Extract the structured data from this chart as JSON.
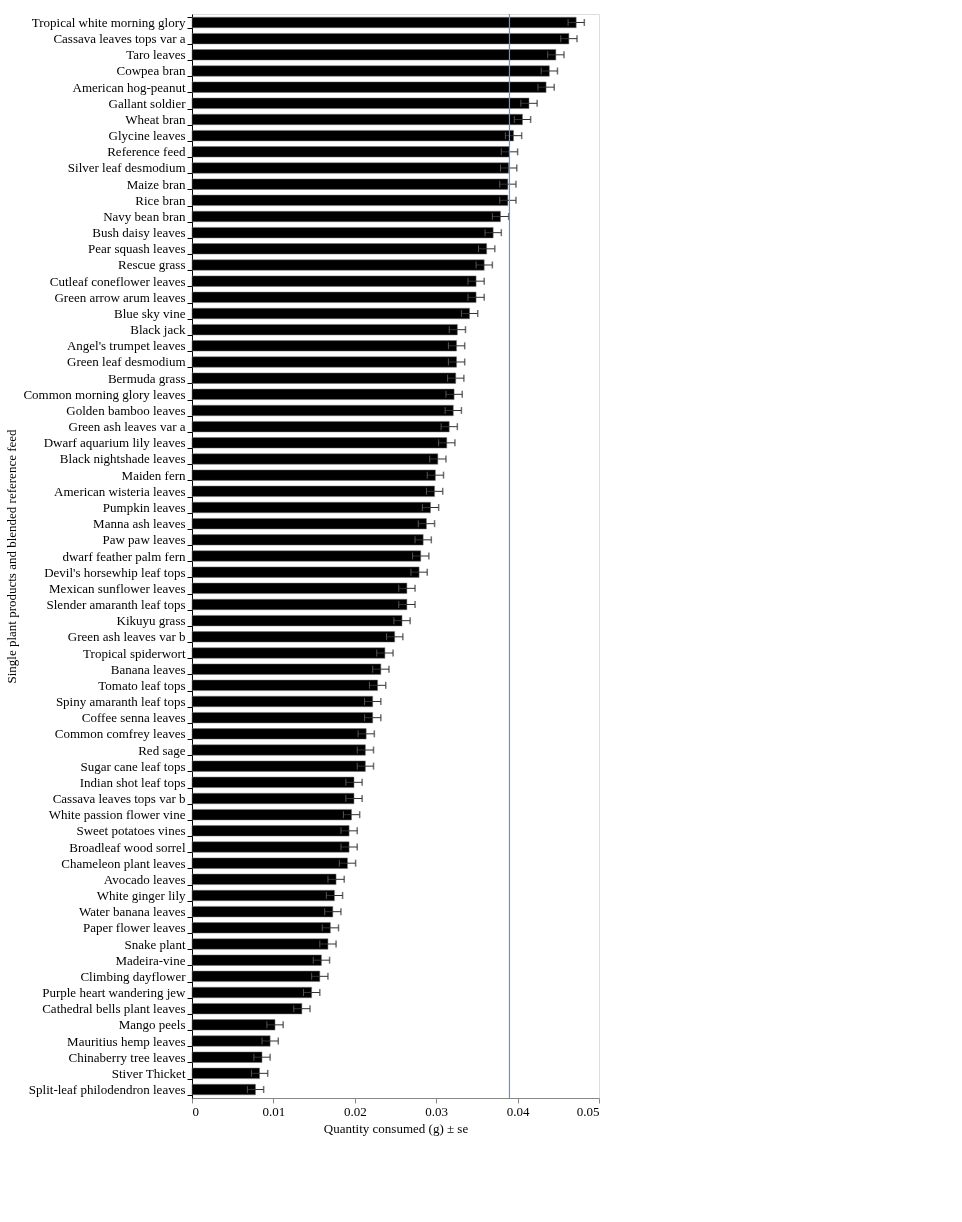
{
  "chart_data": {
    "type": "bar",
    "orientation": "horizontal",
    "xlabel": "Quantity consumed (g) ± se",
    "ylabel": "Single plant products and blended reference feed",
    "categories": [
      "Tropical white morning glory",
      "Cassava  leaves tops var a",
      "Taro leaves",
      "Cowpea bran",
      "American hog-peanut",
      "Gallant soldier",
      "Wheat bran",
      "Glycine leaves",
      "Reference feed",
      "Silver leaf desmodium",
      "Maize bran",
      "Rice bran",
      "Navy bean bran",
      "Bush daisy leaves",
      "Pear squash leaves",
      "Rescue grass",
      "Cutleaf coneflower leaves",
      "Green arrow arum leaves",
      "Blue sky vine",
      "Black jack",
      "Angel's trumpet leaves",
      "Green leaf desmodium",
      "Bermuda grass",
      "Common morning glory leaves",
      "Golden bamboo leaves",
      "Green ash leaves var a",
      "Dwarf aquarium lily leaves",
      "Black nightshade leaves",
      "Maiden fern",
      "American wisteria leaves",
      "Pumpkin leaves",
      "Manna ash leaves",
      "Paw paw leaves",
      "dwarf feather palm fern",
      "Devil's horsewhip leaf tops",
      "Mexican sunflower leaves",
      "Slender amaranth  leaf tops",
      "Kikuyu grass",
      "Green ash leaves var b",
      "Tropical spiderwort",
      "Banana leaves",
      "Tomato leaf tops",
      "Spiny amaranth leaf tops",
      "Coffee senna leaves",
      "Common comfrey leaves",
      "Red sage",
      "Sugar cane leaf tops",
      "Indian shot leaf tops",
      "Cassava  leaves tops var b",
      "White passion flower vine",
      "Sweet potatoes vines",
      "Broadleaf wood sorrel",
      "Chameleon plant leaves",
      "Avocado leaves",
      "White ginger lily",
      "Water banana leaves",
      "Paper flower leaves",
      "Snake plant",
      "Madeira-vine",
      "Climbing dayflower",
      "Purple heart wandering jew",
      "Cathedral bells plant leaves",
      "Mango peels",
      "Mauritius hemp leaves",
      "Chinaberry tree leaves",
      "Stiver Thicket",
      "Split-leaf philodendron leaves"
    ],
    "values": [
      0.0472,
      0.0463,
      0.0447,
      0.0439,
      0.0435,
      0.0414,
      0.0406,
      0.0395,
      0.039,
      0.0389,
      0.0388,
      0.0388,
      0.0379,
      0.037,
      0.0362,
      0.0359,
      0.0349,
      0.0349,
      0.0341,
      0.0326,
      0.0325,
      0.0325,
      0.0324,
      0.0322,
      0.0321,
      0.0316,
      0.0313,
      0.0302,
      0.0299,
      0.0298,
      0.0293,
      0.0288,
      0.0284,
      0.0281,
      0.0279,
      0.0264,
      0.0264,
      0.0258,
      0.0249,
      0.0237,
      0.0232,
      0.0228,
      0.0222,
      0.0222,
      0.0214,
      0.0213,
      0.0213,
      0.0199,
      0.0199,
      0.0196,
      0.0193,
      0.0193,
      0.0191,
      0.0177,
      0.0175,
      0.0173,
      0.017,
      0.0167,
      0.0159,
      0.0157,
      0.0147,
      0.0135,
      0.0102,
      0.0096,
      0.0086,
      0.0083,
      0.0078
    ],
    "errors": [
      0.001,
      0.001,
      0.001,
      0.001,
      0.001,
      0.001,
      0.001,
      0.001,
      0.001,
      0.001,
      0.001,
      0.001,
      0.001,
      0.001,
      0.001,
      0.001,
      0.001,
      0.001,
      0.001,
      0.001,
      0.001,
      0.001,
      0.001,
      0.001,
      0.001,
      0.001,
      0.001,
      0.001,
      0.001,
      0.001,
      0.001,
      0.001,
      0.001,
      0.001,
      0.001,
      0.001,
      0.001,
      0.001,
      0.001,
      0.001,
      0.001,
      0.001,
      0.001,
      0.001,
      0.001,
      0.001,
      0.001,
      0.001,
      0.001,
      0.001,
      0.001,
      0.001,
      0.001,
      0.001,
      0.001,
      0.001,
      0.001,
      0.001,
      0.001,
      0.001,
      0.001,
      0.001,
      0.001,
      0.001,
      0.001,
      0.001,
      0.001
    ],
    "color": "#000000",
    "xlim": [
      0,
      0.05
    ],
    "xticks": [
      0,
      0.01,
      0.02,
      0.03,
      0.04,
      0.05
    ],
    "ref_lines": [
      {
        "axis": "x",
        "value": 0.039,
        "color": "#5b9bd5"
      }
    ],
    "grid": false
  }
}
